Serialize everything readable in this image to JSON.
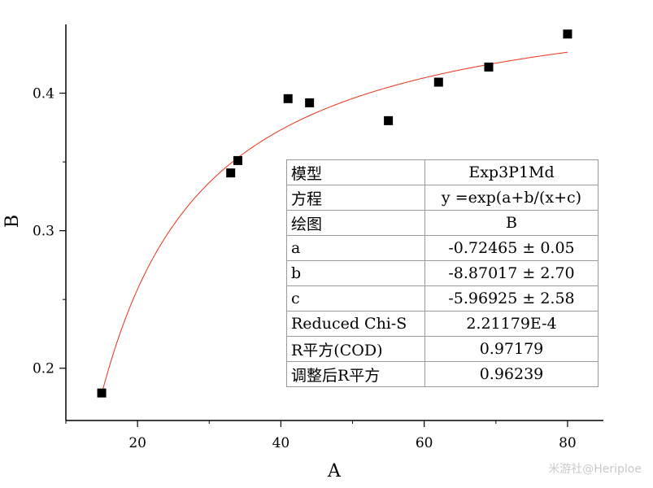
{
  "chart_data": {
    "type": "scatter",
    "xlabel": "A",
    "ylabel": "B",
    "xlim": [
      10,
      85
    ],
    "ylim": [
      0.162,
      0.45
    ],
    "xticks": [
      20,
      40,
      60,
      80
    ],
    "yticks": [
      0.2,
      0.3,
      0.4
    ],
    "ytick_labels": [
      "0.2",
      "0.3",
      "0.4"
    ],
    "grid": false,
    "marker_color": "#000000",
    "fit_color": "#e8311a",
    "series": [
      {
        "points": [
          {
            "x": 15,
            "y": 0.182
          },
          {
            "x": 33,
            "y": 0.342
          },
          {
            "x": 34,
            "y": 0.351
          },
          {
            "x": 41,
            "y": 0.396
          },
          {
            "x": 44,
            "y": 0.393
          },
          {
            "x": 55,
            "y": 0.38
          },
          {
            "x": 62,
            "y": 0.408
          },
          {
            "x": 69,
            "y": 0.419
          },
          {
            "x": 80,
            "y": 0.443
          }
        ]
      }
    ],
    "fit": {
      "model": "Exp3P1Md",
      "equation": "y =exp(a+b/(x+c)",
      "a": -0.72465,
      "b": -8.87017,
      "c": -5.96925,
      "x_range": [
        15,
        80
      ]
    }
  },
  "table": {
    "rows": [
      {
        "key": "模型",
        "value": "Exp3P1Md"
      },
      {
        "key": "方程",
        "value": "y =exp(a+b/(x+c)"
      },
      {
        "key": "绘图",
        "value": "B"
      },
      {
        "key": "a",
        "value": "-0.72465 ± 0.05"
      },
      {
        "key": "b",
        "value": "-8.87017 ± 2.70"
      },
      {
        "key": "c",
        "value": "-5.96925 ± 2.58"
      },
      {
        "key": "Reduced Chi-S",
        "value": "2.21179E-4"
      },
      {
        "key": "R平方(COD)",
        "value": "0.97179"
      },
      {
        "key": "调整后R平方",
        "value": "0.96239"
      }
    ]
  },
  "watermark": "米游社@Heriploe"
}
